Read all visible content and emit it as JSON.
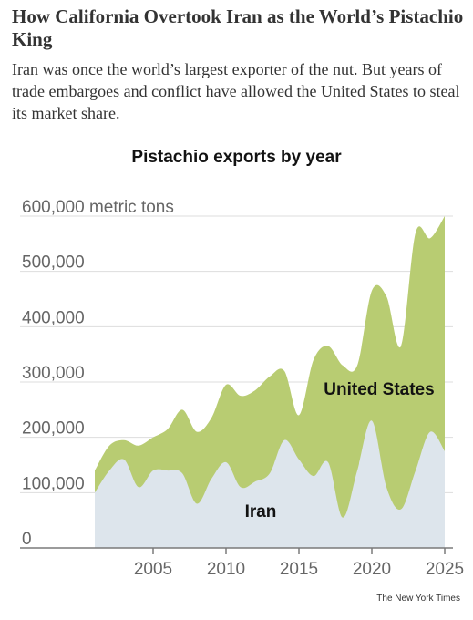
{
  "headline": "How California Overtook Iran as the World’s Pistachio King",
  "dek": "Iran was once the world’s largest exporter of the nut. But years of trade embargoes and conflict have allowed the United States to steal its market share.",
  "credit": "The New York Times",
  "colors": {
    "united_states": "#b8cc72",
    "iran": "#dde5ec",
    "axis": "#7a7a7a",
    "grid": "#dddddd",
    "tick_text": "#666666"
  },
  "chart_data": {
    "type": "area",
    "title": "Pistachio exports by year",
    "stacked": true,
    "ylim": [
      0,
      600000
    ],
    "y_unit_label": "600,000 metric tons",
    "yticks": [
      {
        "value": 0,
        "label": "0"
      },
      {
        "value": 100000,
        "label": "100,000"
      },
      {
        "value": 200000,
        "label": "200,000"
      },
      {
        "value": 300000,
        "label": "300,000"
      },
      {
        "value": 400000,
        "label": "400,000"
      },
      {
        "value": 500000,
        "label": "500,000"
      },
      {
        "value": 600000,
        "label": "600,000 metric tons"
      }
    ],
    "xlim": [
      2001,
      2025
    ],
    "xticks": [
      {
        "value": 2005,
        "label": "2005"
      },
      {
        "value": 2010,
        "label": "2010"
      },
      {
        "value": 2015,
        "label": "2015"
      },
      {
        "value": 2020,
        "label": "2020"
      },
      {
        "value": 2025,
        "label": "2025"
      }
    ],
    "grid": true,
    "x": [
      2001,
      2002,
      2003,
      2004,
      2005,
      2006,
      2007,
      2008,
      2009,
      2010,
      2011,
      2012,
      2013,
      2014,
      2015,
      2016,
      2017,
      2018,
      2019,
      2020,
      2021,
      2022,
      2023,
      2024,
      2025
    ],
    "series": [
      {
        "name": "Iran",
        "values": [
          100000,
          140000,
          160000,
          110000,
          140000,
          140000,
          135000,
          80000,
          125000,
          155000,
          110000,
          120000,
          135000,
          195000,
          160000,
          130000,
          155000,
          55000,
          140000,
          230000,
          110000,
          70000,
          140000,
          210000,
          175000
        ]
      },
      {
        "name": "United States",
        "values": [
          40000,
          45000,
          35000,
          75000,
          60000,
          75000,
          115000,
          130000,
          110000,
          140000,
          165000,
          165000,
          175000,
          125000,
          80000,
          210000,
          210000,
          275000,
          190000,
          235000,
          345000,
          295000,
          430000,
          350000,
          425000
        ]
      }
    ],
    "series_labels": [
      "United States",
      "Iran"
    ]
  }
}
